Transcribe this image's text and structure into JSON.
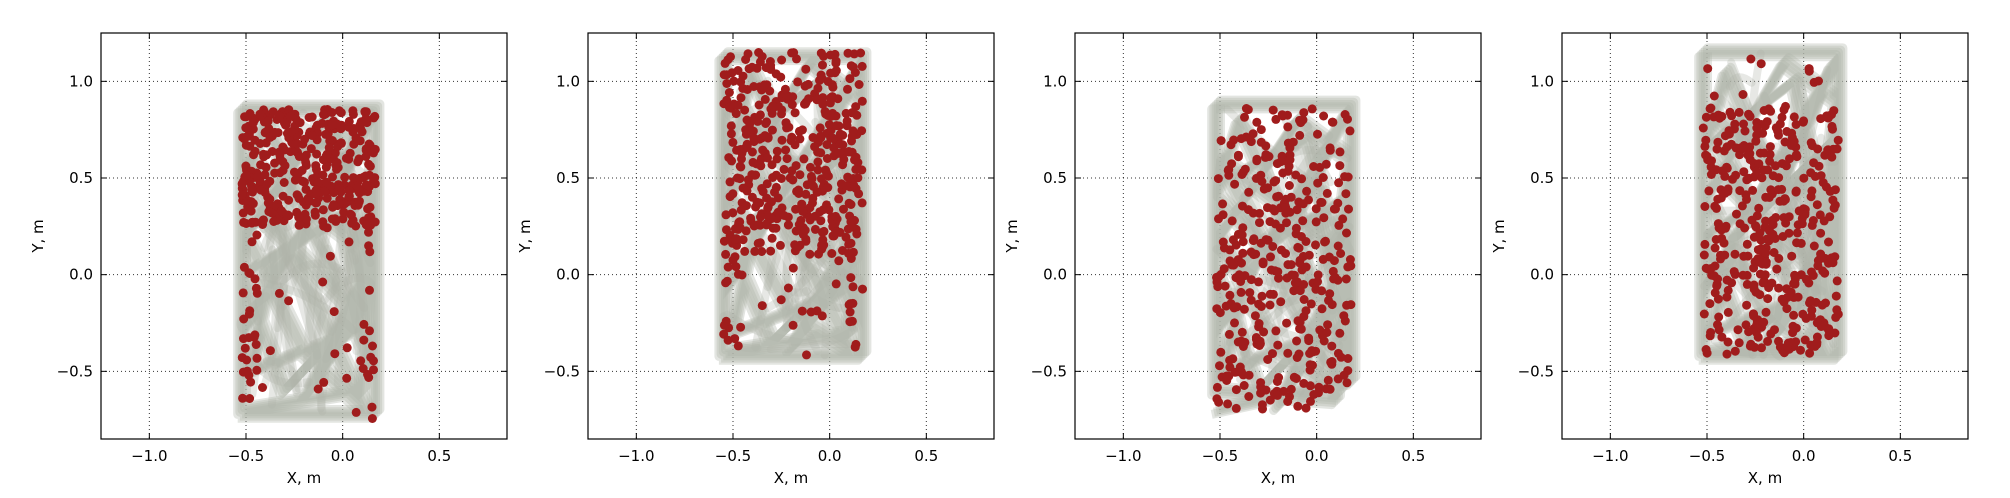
{
  "figure": {
    "background": "#ffffff",
    "trail_color": "#b0b4aa",
    "spike_color": "#a01c1c",
    "grid_style": "dotted"
  },
  "chart_data": [
    {
      "type": "scatter",
      "xlabel": "X, m",
      "ylabel": "Y, m",
      "xlim": [
        -1.25,
        0.85
      ],
      "ylim": [
        -0.85,
        1.25
      ],
      "xticks": [
        -1.0,
        -0.5,
        0.0,
        0.5
      ],
      "yticks": [
        -0.5,
        0.0,
        0.5,
        1.0
      ],
      "xtick_labels": [
        "−1.0",
        "−0.5",
        "0.0",
        "0.5"
      ],
      "ytick_labels": [
        "−0.5",
        "0.0",
        "0.5",
        "1.0"
      ],
      "grid": true,
      "trail": {
        "x": [
          -0.52,
          0.17,
          0.17,
          -0.52,
          -0.52,
          0.1,
          0.15,
          -0.35,
          -0.48,
          0.05,
          0.16,
          -0.1,
          -0.5,
          -0.2,
          0.12,
          -0.45,
          -0.05,
          0.16,
          -0.3,
          -0.52,
          0.0,
          0.17,
          -0.4,
          -0.52,
          0.08,
          -0.2,
          0.15,
          -0.5,
          -0.1,
          0.16,
          -0.52
        ],
        "y": [
          -0.72,
          -0.72,
          0.86,
          0.86,
          -0.7,
          -0.6,
          0.4,
          0.1,
          -0.5,
          -0.3,
          0.6,
          0.8,
          0.2,
          -0.4,
          -0.7,
          0.5,
          0.7,
          -0.1,
          -0.6,
          0.0,
          0.3,
          -0.5,
          0.8,
          0.4,
          -0.2,
          -0.65,
          0.1,
          0.6,
          0.3,
          0.85,
          -0.3
        ]
      },
      "spike_region": {
        "x": [
          -0.52,
          0.17
        ],
        "y": [
          0.25,
          0.86
        ]
      },
      "spike_count": 380,
      "sparse_region": {
        "x": [
          -0.52,
          0.17
        ],
        "y": [
          -0.75,
          0.25
        ]
      },
      "sparse_count": 60
    },
    {
      "type": "scatter",
      "xlabel": "X, m",
      "ylabel": "Y, m",
      "xlim": [
        -1.25,
        0.85
      ],
      "ylim": [
        -0.85,
        1.25
      ],
      "xticks": [
        -1.0,
        -0.5,
        0.0,
        0.5
      ],
      "yticks": [
        -0.5,
        0.0,
        0.5,
        1.0
      ],
      "xtick_labels": [
        "−1.0",
        "−0.5",
        "0.0",
        "0.5"
      ],
      "ytick_labels": [
        "−0.5",
        "0.0",
        "0.5",
        "1.0"
      ],
      "grid": true,
      "trail": {
        "x": [
          -0.55,
          0.17,
          0.17,
          -0.55,
          -0.55,
          0.1,
          0.15,
          -0.4,
          -0.5,
          0.05,
          0.16,
          -0.1,
          -0.52,
          -0.2,
          0.12,
          -0.45,
          -0.05,
          0.16,
          -0.3,
          -0.54,
          0.0,
          0.17,
          -0.4,
          -0.52,
          0.08,
          -0.2,
          0.15,
          -0.5,
          -0.1,
          0.16,
          -0.55
        ],
        "y": [
          -0.42,
          -0.42,
          1.13,
          1.13,
          -0.4,
          -0.3,
          0.7,
          0.2,
          -0.3,
          -0.1,
          0.9,
          1.1,
          0.4,
          -0.2,
          -0.4,
          0.7,
          1.0,
          0.1,
          -0.35,
          0.2,
          0.5,
          -0.3,
          1.05,
          0.6,
          0.0,
          -0.38,
          0.3,
          0.85,
          0.5,
          1.1,
          -0.1
        ]
      },
      "spike_region": {
        "x": [
          -0.55,
          0.17
        ],
        "y": [
          0.1,
          1.15
        ]
      },
      "spike_count": 420,
      "sparse_region": {
        "x": [
          -0.55,
          0.17
        ],
        "y": [
          -0.45,
          0.1
        ]
      },
      "sparse_count": 40
    },
    {
      "type": "scatter",
      "xlabel": "X, m",
      "ylabel": "Y, m",
      "xlim": [
        -1.25,
        0.85
      ],
      "ylim": [
        -0.85,
        1.25
      ],
      "xticks": [
        -1.0,
        -0.5,
        0.0,
        0.5
      ],
      "yticks": [
        -0.5,
        0.0,
        0.5,
        1.0
      ],
      "xtick_labels": [
        "−1.0",
        "−0.5",
        "0.0",
        "0.5"
      ],
      "ytick_labels": [
        "−0.5",
        "0.0",
        "0.5",
        "1.0"
      ],
      "grid": true,
      "trail": {
        "x": [
          -0.52,
          0.18,
          0.18,
          -0.52,
          -0.52,
          0.1,
          0.16,
          -0.35,
          -0.48,
          0.05,
          0.17,
          -0.1,
          -0.5,
          -0.2,
          0.12,
          -0.45,
          -0.05,
          0.16,
          -0.3,
          -0.52,
          0.0,
          0.18,
          -0.4,
          -0.52,
          0.08,
          -0.2,
          0.15,
          -0.5,
          -0.1,
          0.16,
          -0.52
        ],
        "y": [
          -0.7,
          -0.55,
          0.88,
          0.88,
          -0.6,
          -0.65,
          0.4,
          0.1,
          -0.5,
          -0.3,
          0.6,
          0.8,
          0.2,
          -0.4,
          -0.6,
          0.5,
          0.7,
          -0.1,
          -0.6,
          0.0,
          0.3,
          -0.5,
          0.8,
          0.4,
          -0.2,
          -0.68,
          0.1,
          0.6,
          0.3,
          0.85,
          -0.3
        ]
      },
      "spike_region": {
        "x": [
          -0.52,
          0.18
        ],
        "y": [
          -0.7,
          0.86
        ]
      },
      "spike_count": 360,
      "sparse_region": {
        "x": [
          -0.52,
          0.18
        ],
        "y": [
          -0.7,
          -0.1
        ]
      },
      "sparse_count": 0
    },
    {
      "type": "scatter",
      "xlabel": "X, m",
      "ylabel": "Y, m",
      "xlim": [
        -1.25,
        0.85
      ],
      "ylim": [
        -0.85,
        1.25
      ],
      "xticks": [
        -1.0,
        -0.5,
        0.0,
        0.5
      ],
      "yticks": [
        -0.5,
        0.0,
        0.5,
        1.0
      ],
      "xtick_labels": [
        "−1.0",
        "−0.5",
        "0.0",
        "0.5"
      ],
      "ytick_labels": [
        "−0.5",
        "0.0",
        "0.5",
        "1.0"
      ],
      "grid": true,
      "trail": {
        "x": [
          -0.52,
          0.18,
          0.18,
          -0.52,
          -0.52,
          0.1,
          0.16,
          -0.35,
          -0.48,
          0.05,
          0.17,
          -0.1,
          -0.5,
          -0.2,
          0.12,
          -0.45,
          -0.05,
          0.16,
          -0.3,
          -0.52,
          0.0,
          0.18,
          -0.4,
          -0.52,
          0.08,
          -0.2,
          0.15,
          -0.5,
          -0.1,
          0.16,
          -0.52
        ],
        "y": [
          -0.42,
          -0.42,
          1.15,
          1.15,
          -0.4,
          -0.35,
          0.7,
          0.2,
          -0.3,
          -0.1,
          0.9,
          1.1,
          0.4,
          -0.2,
          -0.4,
          0.7,
          1.0,
          0.1,
          -0.35,
          0.2,
          0.5,
          -0.3,
          1.05,
          0.6,
          0.0,
          -0.38,
          0.3,
          0.85,
          0.5,
          1.1,
          -0.1
        ]
      },
      "spike_region": {
        "x": [
          -0.52,
          0.18
        ],
        "y": [
          -0.42,
          0.88
        ]
      },
      "spike_count": 400,
      "sparse_region": {
        "x": [
          -0.52,
          0.1
        ],
        "y": [
          0.88,
          1.12
        ]
      },
      "sparse_count": 10
    }
  ]
}
